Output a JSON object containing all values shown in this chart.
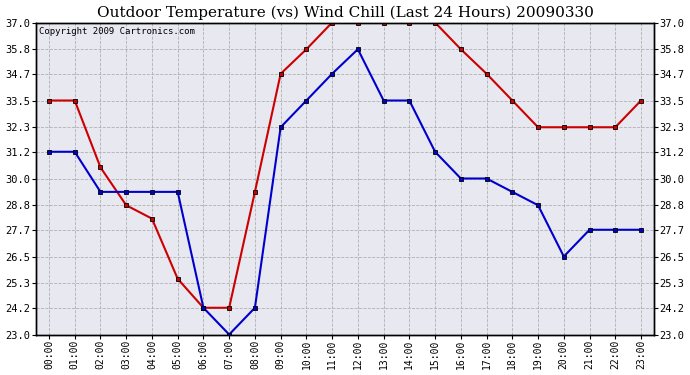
{
  "title": "Outdoor Temperature (vs) Wind Chill (Last 24 Hours) 20090330",
  "copyright": "Copyright 2009 Cartronics.com",
  "hours": [
    "00:00",
    "01:00",
    "02:00",
    "03:00",
    "04:00",
    "05:00",
    "06:00",
    "07:00",
    "08:00",
    "09:00",
    "10:00",
    "11:00",
    "12:00",
    "13:00",
    "14:00",
    "15:00",
    "16:00",
    "17:00",
    "18:00",
    "19:00",
    "20:00",
    "21:00",
    "22:00",
    "23:00"
  ],
  "red_line": [
    33.5,
    33.5,
    30.5,
    28.8,
    28.2,
    25.5,
    24.2,
    24.2,
    29.4,
    34.7,
    35.8,
    37.0,
    37.0,
    37.0,
    37.0,
    37.0,
    35.8,
    34.7,
    33.5,
    32.3,
    32.3,
    32.3,
    32.3,
    33.5
  ],
  "blue_line": [
    31.2,
    31.2,
    29.4,
    29.4,
    29.4,
    29.4,
    24.2,
    23.0,
    24.2,
    32.3,
    33.5,
    34.7,
    35.8,
    33.5,
    33.5,
    31.2,
    30.0,
    30.0,
    29.4,
    28.8,
    26.5,
    27.7,
    27.7,
    27.7
  ],
  "red_color": "#cc0000",
  "blue_color": "#0000cc",
  "bg_color": "#ffffff",
  "plot_bg_color": "#e8e8f0",
  "grid_color": "#aaaaaa",
  "ylim_min": 23.0,
  "ylim_max": 37.0,
  "yticks": [
    23.0,
    24.2,
    25.3,
    26.5,
    27.7,
    28.8,
    30.0,
    31.2,
    32.3,
    33.5,
    34.7,
    35.8,
    37.0
  ],
  "title_fontsize": 11,
  "copyright_fontsize": 6.5
}
